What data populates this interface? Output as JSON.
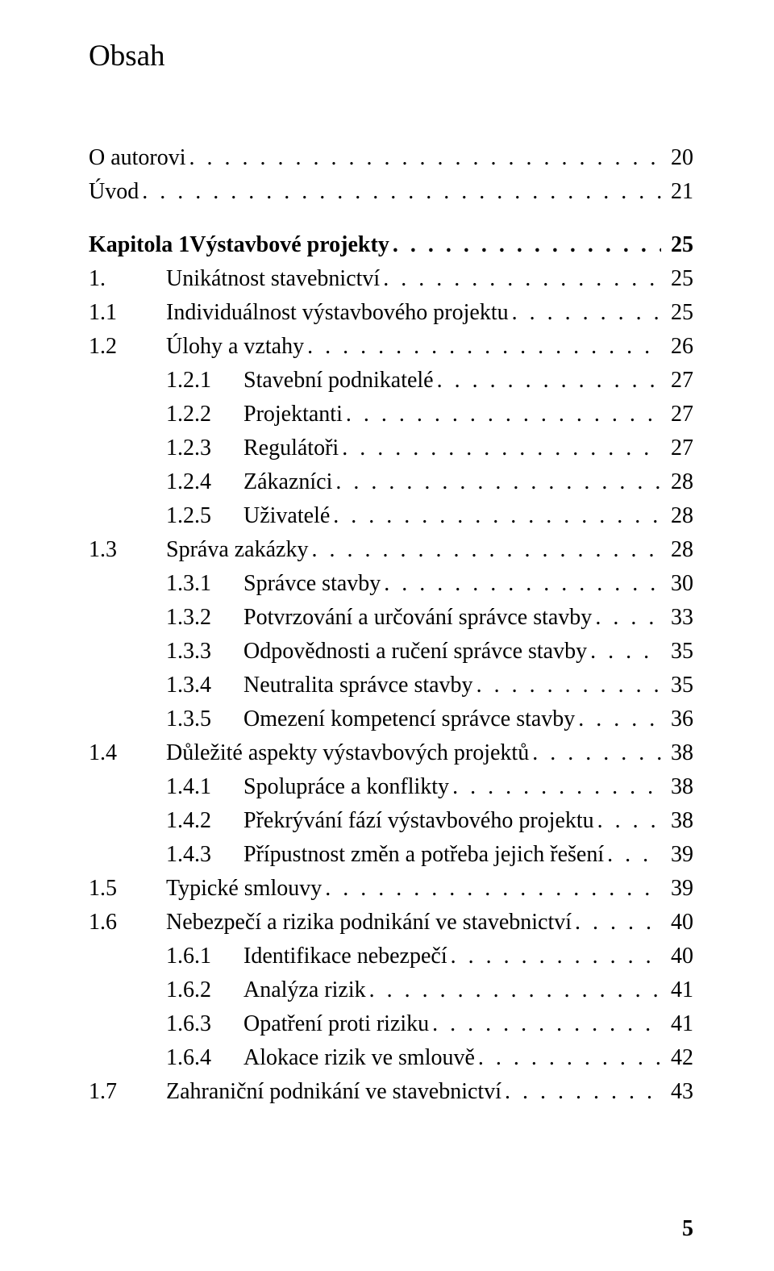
{
  "title": "Obsah",
  "pageNumber": "5",
  "entries": [
    {
      "type": "spacer"
    },
    {
      "level": 0,
      "number": "",
      "label": "O autorovi",
      "page": "20",
      "bold": false
    },
    {
      "level": 0,
      "number": "",
      "label": "Úvod",
      "page": "21",
      "bold": false
    },
    {
      "type": "spacer"
    },
    {
      "level": 0,
      "number": "Kapitola 1  ",
      "label": "Výstavbové projekty",
      "page": "25",
      "bold": true
    },
    {
      "level": 1,
      "number": "1.",
      "label": "Unikátnost stavebnictví",
      "page": "25",
      "bold": false
    },
    {
      "level": 1,
      "number": "1.1",
      "label": "Individuálnost výstavbového projektu",
      "page": "25",
      "bold": false
    },
    {
      "level": 1,
      "number": "1.2",
      "label": "Úlohy a vztahy",
      "page": "26",
      "bold": false
    },
    {
      "level": 2,
      "number": "1.2.1",
      "label": "Stavební podnikatelé",
      "page": "27",
      "bold": false
    },
    {
      "level": 2,
      "number": "1.2.2",
      "label": "Projektanti",
      "page": "27",
      "bold": false
    },
    {
      "level": 2,
      "number": "1.2.3",
      "label": "Regulátoři",
      "page": "27",
      "bold": false
    },
    {
      "level": 2,
      "number": "1.2.4",
      "label": "Zákazníci",
      "page": "28",
      "bold": false
    },
    {
      "level": 2,
      "number": "1.2.5",
      "label": "Uživatelé",
      "page": "28",
      "bold": false
    },
    {
      "level": 1,
      "number": "1.3",
      "label": "Správa zakázky",
      "page": "28",
      "bold": false
    },
    {
      "level": 2,
      "number": "1.3.1",
      "label": "Správce stavby",
      "page": "30",
      "bold": false
    },
    {
      "level": 2,
      "number": "1.3.2",
      "label": "Potvrzování a určování správce stavby",
      "page": "33",
      "bold": false
    },
    {
      "level": 2,
      "number": "1.3.3",
      "label": "Odpovědnosti a ručení správce stavby",
      "page": "35",
      "bold": false
    },
    {
      "level": 2,
      "number": "1.3.4",
      "label": "Neutralita správce stavby",
      "page": "35",
      "bold": false
    },
    {
      "level": 2,
      "number": "1.3.5",
      "label": "Omezení kompetencí správce stavby",
      "page": "36",
      "bold": false
    },
    {
      "level": 1,
      "number": "1.4",
      "label": "Důležité aspekty výstavbových projektů",
      "page": "38",
      "bold": false
    },
    {
      "level": 2,
      "number": "1.4.1",
      "label": "Spolupráce a konflikty",
      "page": "38",
      "bold": false
    },
    {
      "level": 2,
      "number": "1.4.2",
      "label": "Překrývání fází výstavbového projektu",
      "page": "38",
      "bold": false
    },
    {
      "level": 2,
      "number": "1.4.3",
      "label": "Přípustnost změn a potřeba jejich řešení",
      "page": "39",
      "bold": false
    },
    {
      "level": 1,
      "number": "1.5",
      "label": "Typické smlouvy",
      "page": "39",
      "bold": false
    },
    {
      "level": 1,
      "number": "1.6",
      "label": "Nebezpečí a rizika podnikání ve stavebnictví",
      "page": "40",
      "bold": false
    },
    {
      "level": 2,
      "number": "1.6.1",
      "label": "Identifikace nebezpečí",
      "page": "40",
      "bold": false
    },
    {
      "level": 2,
      "number": "1.6.2",
      "label": "Analýza rizik",
      "page": "41",
      "bold": false
    },
    {
      "level": 2,
      "number": "1.6.3",
      "label": "Opatření proti riziku",
      "page": "41",
      "bold": false
    },
    {
      "level": 2,
      "number": "1.6.4",
      "label": "Alokace rizik ve smlouvě",
      "page": "42",
      "bold": false
    },
    {
      "level": 1,
      "number": "1.7",
      "label": "Zahraniční podnikání ve stavebnictví",
      "page": "43",
      "bold": false
    }
  ]
}
